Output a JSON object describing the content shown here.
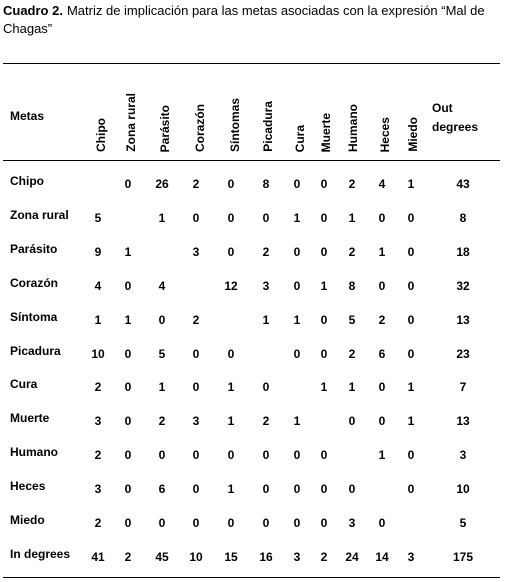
{
  "caption": {
    "label": "Cuadro 2.",
    "text": "Matriz de implicación para las metas asociadas con la expresión “Mal de Chagas”"
  },
  "table": {
    "header": [
      "Metas",
      "Chipo",
      "Zona rural",
      "Parásito",
      "Corazón",
      "Síntomas",
      "Picadura",
      "Cura",
      "Muerte",
      "Humano",
      "Heces",
      "Miedo",
      "Out degrees"
    ],
    "rows": [
      {
        "label": "Chipo",
        "values": [
          null,
          0,
          26,
          2,
          0,
          8,
          0,
          0,
          2,
          4,
          1,
          43
        ]
      },
      {
        "label": "Zona rural",
        "values": [
          5,
          null,
          1,
          0,
          0,
          0,
          1,
          0,
          1,
          0,
          0,
          8
        ]
      },
      {
        "label": "Parásito",
        "values": [
          9,
          1,
          null,
          3,
          0,
          2,
          0,
          0,
          2,
          1,
          0,
          18
        ]
      },
      {
        "label": "Corazón",
        "values": [
          4,
          0,
          4,
          null,
          12,
          3,
          0,
          1,
          8,
          0,
          0,
          32
        ]
      },
      {
        "label": "Síntoma",
        "values": [
          1,
          1,
          0,
          2,
          null,
          1,
          1,
          0,
          5,
          2,
          0,
          13
        ]
      },
      {
        "label": "Picadura",
        "values": [
          10,
          0,
          5,
          0,
          0,
          null,
          0,
          0,
          2,
          6,
          0,
          23
        ]
      },
      {
        "label": "Cura",
        "values": [
          2,
          0,
          1,
          0,
          1,
          0,
          null,
          1,
          1,
          0,
          1,
          7
        ]
      },
      {
        "label": "Muerte",
        "values": [
          3,
          0,
          2,
          3,
          1,
          2,
          1,
          null,
          0,
          0,
          1,
          13
        ]
      },
      {
        "label": "Humano",
        "values": [
          2,
          0,
          0,
          0,
          0,
          0,
          0,
          0,
          null,
          1,
          0,
          3
        ]
      },
      {
        "label": "Heces",
        "values": [
          3,
          0,
          6,
          0,
          1,
          0,
          0,
          0,
          0,
          null,
          0,
          10
        ]
      },
      {
        "label": "Miedo",
        "values": [
          2,
          0,
          0,
          0,
          0,
          0,
          0,
          0,
          3,
          0,
          null,
          5
        ]
      },
      {
        "label": "In degrees",
        "values": [
          41,
          2,
          45,
          10,
          15,
          16,
          3,
          2,
          24,
          14,
          3,
          175
        ]
      }
    ]
  }
}
